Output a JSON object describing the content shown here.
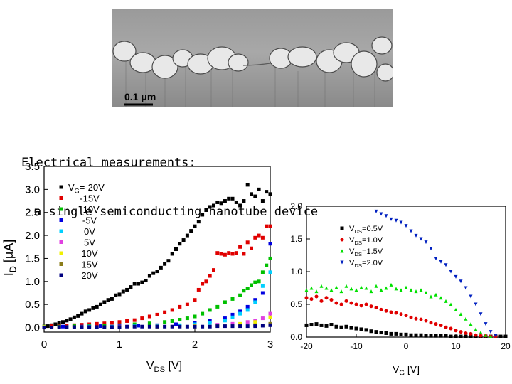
{
  "sem_image": {
    "scale_label": "0.1 μm"
  },
  "caption": {
    "line1": "Electrical measurements:",
    "line2": "a single semiconducting nanotube device"
  },
  "chart_data": [
    {
      "type": "scatter",
      "title": "",
      "xlabel": "V_DS [V]",
      "ylabel": "I_D [μA]",
      "xlim": [
        0,
        3
      ],
      "ylim": [
        -0.1,
        3.5
      ],
      "xticks": [
        "0",
        "1",
        "2",
        "3"
      ],
      "yticks": [
        "0.0",
        "0.5",
        "1.0",
        "1.5",
        "2.0",
        "2.5",
        "3.0",
        "3.5"
      ],
      "legend_title": "V_G=-20V",
      "legend_position": "top-left",
      "series": [
        {
          "name": "V_G=-20V",
          "color": "#000000",
          "marker": "square",
          "x": [
            0.0,
            0.05,
            0.1,
            0.15,
            0.2,
            0.25,
            0.3,
            0.35,
            0.4,
            0.45,
            0.5,
            0.55,
            0.6,
            0.65,
            0.7,
            0.75,
            0.8,
            0.85,
            0.9,
            0.95,
            1.0,
            1.05,
            1.1,
            1.15,
            1.2,
            1.25,
            1.3,
            1.35,
            1.4,
            1.45,
            1.5,
            1.55,
            1.6,
            1.65,
            1.7,
            1.75,
            1.8,
            1.85,
            1.9,
            1.95,
            2.0,
            2.05,
            2.1,
            2.15,
            2.2,
            2.25,
            2.3,
            2.35,
            2.4,
            2.45,
            2.5,
            2.55,
            2.6,
            2.65,
            2.7,
            2.75,
            2.8,
            2.85,
            2.9,
            2.95,
            3.0
          ],
          "y": [
            0.02,
            0.03,
            0.05,
            0.07,
            0.1,
            0.12,
            0.15,
            0.18,
            0.22,
            0.25,
            0.3,
            0.35,
            0.38,
            0.42,
            0.45,
            0.5,
            0.55,
            0.6,
            0.62,
            0.7,
            0.72,
            0.78,
            0.82,
            0.88,
            0.95,
            0.95,
            0.98,
            1.02,
            1.12,
            1.18,
            1.22,
            1.3,
            1.38,
            1.45,
            1.6,
            1.7,
            1.82,
            1.9,
            2.0,
            2.1,
            2.2,
            2.3,
            2.45,
            2.55,
            2.62,
            2.65,
            2.72,
            2.7,
            2.75,
            2.8,
            2.8,
            2.72,
            2.65,
            2.75,
            3.1,
            2.9,
            2.85,
            3.0,
            2.75,
            2.95,
            2.9
          ]
        },
        {
          "name": "-15V",
          "color": "#e00000",
          "marker": "square",
          "x": [
            0.0,
            0.1,
            0.2,
            0.3,
            0.4,
            0.5,
            0.6,
            0.7,
            0.8,
            0.9,
            1.0,
            1.1,
            1.2,
            1.3,
            1.4,
            1.5,
            1.6,
            1.7,
            1.8,
            1.9,
            2.0,
            2.05,
            2.1,
            2.15,
            2.2,
            2.25,
            2.3,
            2.35,
            2.4,
            2.45,
            2.5,
            2.55,
            2.6,
            2.65,
            2.7,
            2.75,
            2.8,
            2.85,
            2.9,
            2.95,
            3.0
          ],
          "y": [
            0.02,
            0.03,
            0.03,
            0.04,
            0.05,
            0.06,
            0.07,
            0.08,
            0.09,
            0.1,
            0.12,
            0.14,
            0.16,
            0.2,
            0.24,
            0.28,
            0.33,
            0.38,
            0.45,
            0.5,
            0.6,
            0.82,
            0.95,
            1.0,
            1.12,
            1.25,
            1.62,
            1.6,
            1.58,
            1.62,
            1.6,
            1.62,
            1.75,
            1.6,
            1.85,
            1.72,
            1.95,
            2.0,
            1.95,
            2.2,
            2.2
          ]
        },
        {
          "name": "-10V",
          "color": "#00c000",
          "marker": "square",
          "x": [
            0.0,
            0.2,
            0.4,
            0.6,
            0.8,
            1.0,
            1.2,
            1.4,
            1.6,
            1.7,
            1.8,
            1.9,
            2.0,
            2.1,
            2.2,
            2.3,
            2.4,
            2.5,
            2.6,
            2.65,
            2.7,
            2.75,
            2.8,
            2.85,
            2.9,
            2.95,
            3.0
          ],
          "y": [
            0.02,
            0.02,
            0.03,
            0.03,
            0.04,
            0.05,
            0.07,
            0.09,
            0.12,
            0.14,
            0.17,
            0.2,
            0.24,
            0.3,
            0.38,
            0.45,
            0.55,
            0.62,
            0.7,
            0.8,
            0.85,
            0.92,
            0.98,
            1.0,
            1.2,
            1.35,
            1.5
          ]
        },
        {
          "name": "-5V",
          "color": "#0000e0",
          "marker": "square",
          "x": [
            0.0,
            0.25,
            0.5,
            0.75,
            1.0,
            1.25,
            1.5,
            1.75,
            2.0,
            2.2,
            2.4,
            2.5,
            2.6,
            2.7,
            2.8,
            2.9,
            3.0
          ],
          "y": [
            0.01,
            0.02,
            0.02,
            0.03,
            0.03,
            0.04,
            0.05,
            0.07,
            0.1,
            0.14,
            0.2,
            0.28,
            0.35,
            0.45,
            0.6,
            0.75,
            1.82
          ]
        },
        {
          "name": "0V",
          "color": "#00d0ff",
          "marker": "square",
          "x": [
            0.0,
            0.3,
            0.6,
            0.9,
            1.2,
            1.5,
            1.8,
            2.0,
            2.2,
            2.4,
            2.5,
            2.6,
            2.7,
            2.8,
            2.9,
            3.0
          ],
          "y": [
            0.01,
            0.01,
            0.02,
            0.02,
            0.03,
            0.03,
            0.05,
            0.07,
            0.1,
            0.15,
            0.22,
            0.3,
            0.38,
            0.55,
            0.9,
            1.2
          ]
        },
        {
          "name": "5V",
          "color": "#e040e0",
          "marker": "square",
          "x": [
            0.0,
            0.5,
            1.0,
            1.5,
            2.0,
            2.3,
            2.5,
            2.7,
            2.8,
            2.9,
            3.0
          ],
          "y": [
            0.01,
            0.01,
            0.02,
            0.02,
            0.04,
            0.06,
            0.08,
            0.12,
            0.15,
            0.2,
            0.3
          ]
        },
        {
          "name": "10V",
          "color": "#f0f000",
          "marker": "square",
          "x": [
            0.0,
            0.5,
            1.0,
            1.5,
            2.0,
            2.3,
            2.6,
            2.8,
            3.0
          ],
          "y": [
            0.01,
            0.01,
            0.01,
            0.02,
            0.03,
            0.04,
            0.08,
            0.12,
            0.22
          ]
        },
        {
          "name": "15V",
          "color": "#8b7d1a",
          "marker": "square",
          "x": [
            0.0,
            0.5,
            1.0,
            1.5,
            2.0,
            2.5,
            2.8,
            3.0
          ],
          "y": [
            0.0,
            0.01,
            0.01,
            0.02,
            0.02,
            0.03,
            0.05,
            0.08
          ]
        },
        {
          "name": "20V",
          "color": "#000080",
          "marker": "square",
          "x": [
            0.0,
            0.1,
            0.2,
            0.3,
            0.4,
            0.5,
            0.6,
            0.7,
            0.8,
            0.9,
            1.0,
            1.1,
            1.2,
            1.3,
            1.4,
            1.5,
            1.6,
            1.7,
            1.8,
            1.9,
            2.0,
            2.1,
            2.2,
            2.3,
            2.4,
            2.5,
            2.6,
            2.7,
            2.8,
            2.9,
            3.0
          ],
          "y": [
            0.0,
            0.0,
            0.01,
            0.01,
            0.01,
            0.01,
            0.01,
            0.01,
            0.01,
            0.01,
            0.01,
            0.02,
            0.02,
            0.02,
            0.02,
            0.02,
            0.02,
            0.02,
            0.02,
            0.02,
            0.02,
            0.02,
            0.02,
            0.03,
            0.03,
            0.03,
            0.03,
            0.03,
            0.03,
            0.04,
            0.05
          ]
        }
      ]
    },
    {
      "type": "scatter",
      "title": "",
      "xlabel": "V_G [V]",
      "ylabel": "",
      "xlim": [
        -20,
        20
      ],
      "ylim": [
        0,
        2
      ],
      "xticks": [
        "-20",
        "-10",
        "0",
        "10",
        "20"
      ],
      "yticks": [
        "0.0",
        "0.5",
        "1.0",
        "1.5",
        "2.0"
      ],
      "legend_position": "top-left",
      "series": [
        {
          "name": "V_DS=0.5V",
          "color": "#000000",
          "marker": "square",
          "x": [
            -20,
            -19,
            -18,
            -17,
            -16,
            -15,
            -14,
            -13,
            -12,
            -11,
            -10,
            -9,
            -8,
            -7,
            -6,
            -5,
            -4,
            -3,
            -2,
            -1,
            0,
            1,
            2,
            3,
            4,
            5,
            6,
            7,
            8,
            9,
            10,
            11,
            12,
            13,
            14,
            15,
            16,
            17,
            18,
            19,
            20
          ],
          "y": [
            0.18,
            0.19,
            0.2,
            0.18,
            0.17,
            0.19,
            0.16,
            0.15,
            0.16,
            0.14,
            0.13,
            0.12,
            0.11,
            0.09,
            0.08,
            0.07,
            0.06,
            0.05,
            0.05,
            0.04,
            0.04,
            0.03,
            0.03,
            0.03,
            0.02,
            0.02,
            0.02,
            0.02,
            0.02,
            0.01,
            0.01,
            0.01,
            0.01,
            0.01,
            0.01,
            0.01,
            0.01,
            0.01,
            0.01,
            0.01,
            0.01
          ]
        },
        {
          "name": "V_DS=1.0V",
          "color": "#e00000",
          "marker": "circle",
          "x": [
            -20,
            -19,
            -18,
            -17,
            -16,
            -15,
            -14,
            -13,
            -12,
            -11,
            -10,
            -9,
            -8,
            -7,
            -6,
            -5,
            -4,
            -3,
            -2,
            -1,
            0,
            1,
            2,
            3,
            4,
            5,
            6,
            7,
            8,
            9,
            10,
            11,
            12,
            13,
            14,
            15,
            16,
            17,
            18
          ],
          "y": [
            0.6,
            0.58,
            0.62,
            0.55,
            0.6,
            0.57,
            0.52,
            0.5,
            0.55,
            0.52,
            0.5,
            0.48,
            0.5,
            0.47,
            0.45,
            0.42,
            0.4,
            0.38,
            0.37,
            0.35,
            0.33,
            0.3,
            0.28,
            0.27,
            0.25,
            0.22,
            0.2,
            0.18,
            0.15,
            0.13,
            0.1,
            0.08,
            0.06,
            0.05,
            0.03,
            0.02,
            0.02,
            0.01,
            0.01
          ]
        },
        {
          "name": "V_DS=1.5V",
          "color": "#00e000",
          "marker": "triangle-up",
          "x": [
            -20,
            -19,
            -18,
            -17,
            -16,
            -15,
            -14,
            -13,
            -12,
            -11,
            -10,
            -9,
            -8,
            -7,
            -6,
            -5,
            -4,
            -3,
            -2,
            -1,
            0,
            1,
            2,
            3,
            4,
            5,
            6,
            7,
            8,
            9,
            10,
            11,
            12,
            13,
            14,
            15,
            16,
            17
          ],
          "y": [
            0.72,
            0.75,
            0.7,
            0.78,
            0.75,
            0.72,
            0.76,
            0.7,
            0.78,
            0.74,
            0.72,
            0.76,
            0.75,
            0.7,
            0.78,
            0.72,
            0.75,
            0.8,
            0.74,
            0.72,
            0.76,
            0.72,
            0.7,
            0.72,
            0.68,
            0.62,
            0.65,
            0.6,
            0.55,
            0.5,
            0.42,
            0.35,
            0.28,
            0.2,
            0.12,
            0.07,
            0.03,
            0.01
          ]
        },
        {
          "name": "V_DS=2.0V",
          "color": "#0020c0",
          "marker": "triangle-down",
          "x": [
            -6,
            -5,
            -4,
            -3,
            -2,
            -1,
            0,
            1,
            2,
            3,
            4,
            5,
            6,
            7,
            8,
            9,
            10,
            11,
            12,
            13,
            14,
            15,
            16,
            17,
            18
          ],
          "y": [
            1.92,
            1.88,
            1.85,
            1.8,
            1.78,
            1.75,
            1.7,
            1.62,
            1.55,
            1.5,
            1.45,
            1.35,
            1.2,
            1.15,
            1.1,
            1.0,
            0.92,
            0.85,
            0.75,
            0.62,
            0.5,
            0.35,
            0.2,
            0.08,
            0.02
          ]
        }
      ]
    }
  ]
}
